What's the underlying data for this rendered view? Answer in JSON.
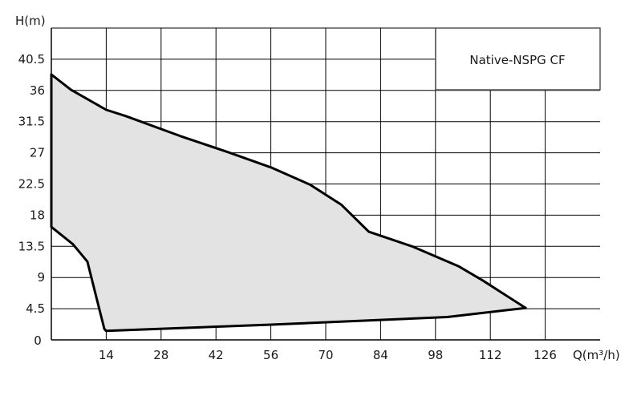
{
  "chart_data": {
    "type": "area",
    "title": "",
    "xlabel": "Q(m³/h)",
    "ylabel": "H(m)",
    "xlim": [
      0,
      140
    ],
    "ylim": [
      0,
      45
    ],
    "x_ticks": [
      14,
      28,
      42,
      56,
      70,
      84,
      98,
      112,
      126
    ],
    "y_ticks": [
      0,
      4.5,
      9,
      13.5,
      18,
      22.5,
      27,
      31.5,
      36,
      40.5
    ],
    "x_tick_labels": [
      "14",
      "28",
      "42",
      "56",
      "70",
      "84",
      "98",
      "112",
      "126"
    ],
    "y_tick_labels": [
      "0",
      "4.5",
      "9",
      "13.5",
      "18",
      "22.5",
      "27",
      "31.5",
      "36",
      "40.5"
    ],
    "grid": true,
    "legend_placement": "top-right",
    "series": [
      {
        "name": "Native-NSPG CF",
        "fill": "#e3e3e3",
        "stroke": "#000000",
        "x": [
          0,
          5,
          14,
          19,
          33,
          45,
          56,
          66,
          74,
          81,
          92,
          104,
          110,
          121,
          101,
          56,
          14,
          13.5,
          9.2,
          5.5,
          0
        ],
        "y": [
          38.3,
          36.1,
          33.2,
          32.3,
          29.4,
          27.1,
          24.9,
          22.4,
          19.5,
          15.6,
          13.5,
          10.6,
          8.6,
          4.6,
          3.3,
          2.2,
          1.3,
          1.6,
          11.3,
          13.8,
          16.3
        ]
      }
    ]
  }
}
